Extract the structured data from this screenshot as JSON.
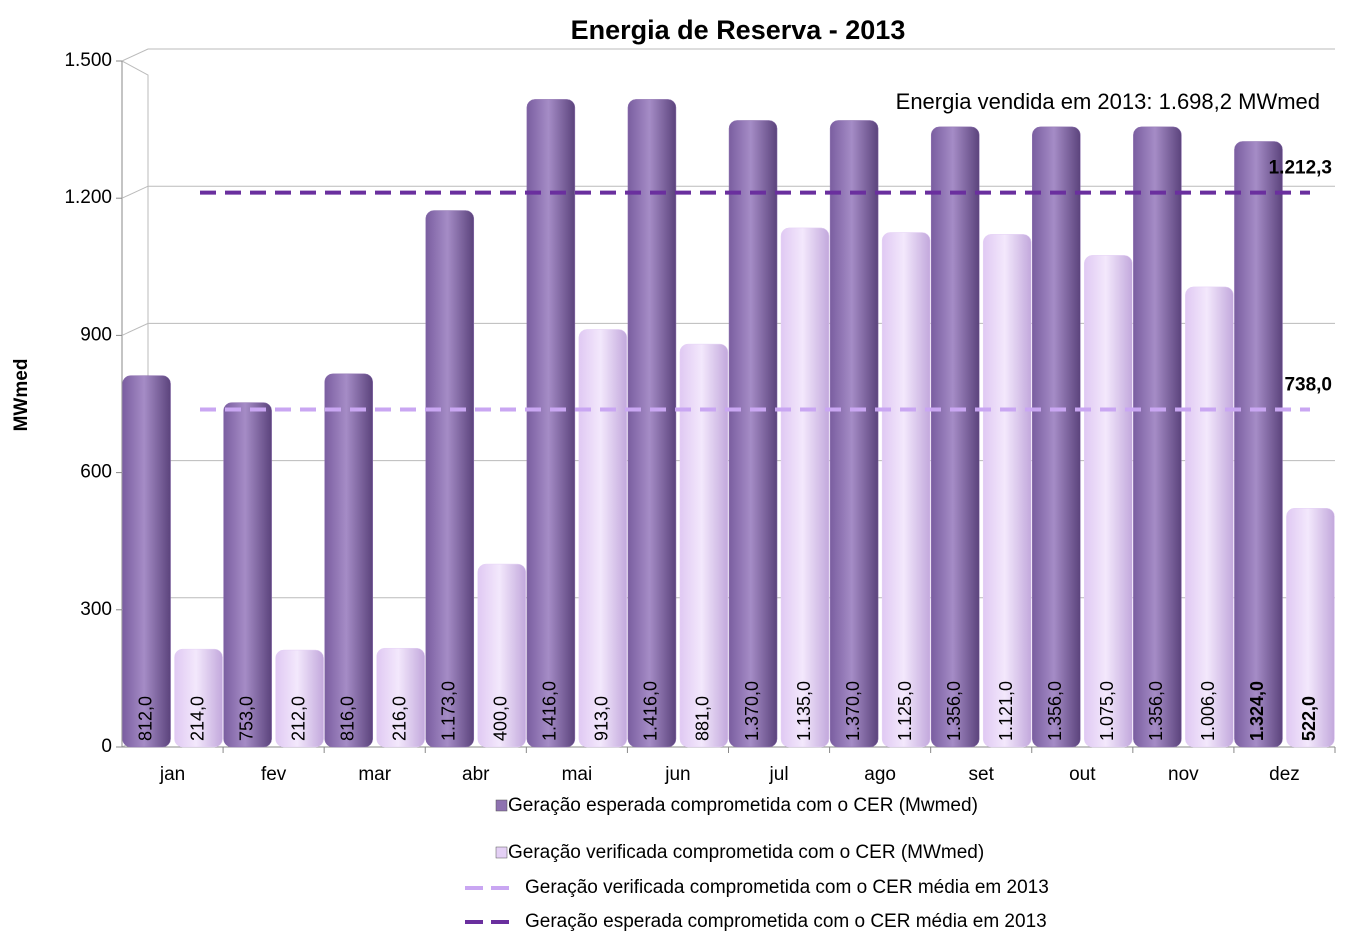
{
  "chart_data": {
    "type": "bar",
    "title": "Energia de Reserva - 2013",
    "y_label": "MWmed",
    "annotation": "Energia vendida em 2013: 1.698,2 MWmed",
    "categories": [
      "jan",
      "fev",
      "mar",
      "abr",
      "mai",
      "jun",
      "jul",
      "ago",
      "set",
      "out",
      "nov",
      "dez"
    ],
    "series": [
      {
        "name": "Geração esperada comprometida com o CER (Mwmed)",
        "color": "#8e72b0",
        "values": [
          812,
          753,
          816,
          1173,
          1416,
          1416,
          1370,
          1370,
          1356,
          1356,
          1356,
          1324
        ],
        "value_labels": [
          "812,0",
          "753,0",
          "816,0",
          "1.173,0",
          "1.416,0",
          "1.416,0",
          "1.370,0",
          "1.370,0",
          "1.356,0",
          "1.356,0",
          "1.356,0",
          "1.324,0"
        ]
      },
      {
        "name": "Geração verificada comprometida com o CER (MWmed)",
        "color": "#e4d0f5",
        "values": [
          214,
          212,
          216,
          400,
          913,
          881,
          1135,
          1125,
          1121,
          1075,
          1006,
          522
        ],
        "value_labels": [
          "214,0",
          "212,0",
          "216,0",
          "400,0",
          "913,0",
          "881,0",
          "1.135,0",
          "1.125,0",
          "1.121,0",
          "1.075,0",
          "1.006,0",
          "522,0"
        ]
      }
    ],
    "lines": [
      {
        "name": "Geração verificada comprometida com o CER média em 2013",
        "color": "#c9a6f2",
        "value": 738,
        "value_label": "738,0"
      },
      {
        "name": "Geração esperada comprometida com o CER média em 2013",
        "color": "#6a2f9e",
        "value": 1212.3,
        "value_label": "1.212,3"
      }
    ],
    "ylim": [
      0,
      1500
    ],
    "yticks": [
      0,
      300,
      600,
      900,
      {
        "value": 1200,
        "label": "1.200"
      },
      {
        "value": 1500,
        "label": "1.500"
      }
    ],
    "grid": true
  }
}
